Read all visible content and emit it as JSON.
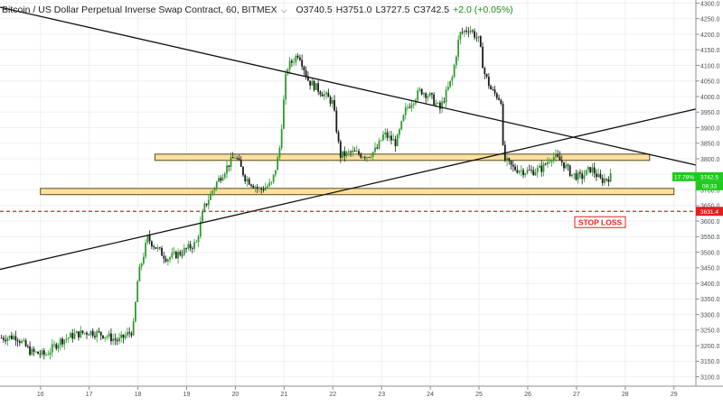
{
  "header": {
    "title": "Bitcoin / US Dollar Perpetual Inverse Swap Contract, 60, BITMEX",
    "chevron_icon": "chevron-down-icon",
    "open": "O3740.5",
    "high": "H3751.0",
    "low": "L3727.5",
    "close": "C3742.5",
    "change": "+2.0 (+0.05%)"
  },
  "chart_data": {
    "type": "candlestick",
    "y_axis": {
      "min": 3070,
      "max": 4310,
      "ticks": [
        3100,
        3150,
        3200,
        3250,
        3300,
        3350,
        3400,
        3450,
        3500,
        3550,
        3600,
        3650,
        3700,
        3750,
        3800,
        3850,
        3900,
        3950,
        4000,
        4050,
        4100,
        4150,
        4200,
        4250,
        4300
      ],
      "tick_labels": [
        "3100.0",
        "3150.0",
        "3200.0",
        "3250.0",
        "3300.0",
        "3350.0",
        "3400.0",
        "3450.0",
        "3500.0",
        "3550.0",
        "3600.0",
        "3650.0",
        "3700.0",
        "3750.0",
        "3800.0",
        "3850.0",
        "3900.0",
        "3950.0",
        "4000.0",
        "4050.0",
        "4100.0",
        "4150.0",
        "4200.0",
        "4250.0",
        "4300.0"
      ]
    },
    "x_axis": {
      "tick_labels": [
        "16",
        "17",
        "18",
        "19",
        "20",
        "21",
        "22",
        "23",
        "24",
        "25",
        "26",
        "27",
        "28",
        "29"
      ],
      "tick_days": [
        16,
        17,
        18,
        19,
        20,
        21,
        22,
        23,
        24,
        25,
        26,
        27,
        28,
        29
      ],
      "range": [
        15.17,
        29.45
      ]
    },
    "grid": true,
    "close_path": [
      [
        15.2,
        3225
      ],
      [
        15.5,
        3230
      ],
      [
        15.8,
        3180
      ],
      [
        16.1,
        3170
      ],
      [
        16.4,
        3215
      ],
      [
        16.7,
        3235
      ],
      [
        17.0,
        3245
      ],
      [
        17.3,
        3235
      ],
      [
        17.6,
        3215
      ],
      [
        17.9,
        3250
      ],
      [
        18.0,
        3420
      ],
      [
        18.2,
        3545
      ],
      [
        18.4,
        3510
      ],
      [
        18.6,
        3480
      ],
      [
        18.9,
        3500
      ],
      [
        19.2,
        3530
      ],
      [
        19.35,
        3640
      ],
      [
        19.6,
        3720
      ],
      [
        19.85,
        3780
      ],
      [
        20.0,
        3810
      ],
      [
        20.2,
        3740
      ],
      [
        20.5,
        3700
      ],
      [
        20.75,
        3720
      ],
      [
        20.9,
        3820
      ],
      [
        21.05,
        4090
      ],
      [
        21.3,
        4140
      ],
      [
        21.5,
        4050
      ],
      [
        21.8,
        4010
      ],
      [
        22.0,
        3980
      ],
      [
        22.15,
        3810
      ],
      [
        22.4,
        3820
      ],
      [
        22.7,
        3810
      ],
      [
        22.9,
        3830
      ],
      [
        23.05,
        3880
      ],
      [
        23.3,
        3850
      ],
      [
        23.5,
        3960
      ],
      [
        23.8,
        4020
      ],
      [
        24.0,
        4000
      ],
      [
        24.2,
        3960
      ],
      [
        24.45,
        4060
      ],
      [
        24.6,
        4200
      ],
      [
        24.8,
        4220
      ],
      [
        25.0,
        4180
      ],
      [
        25.1,
        4080
      ],
      [
        25.25,
        4020
      ],
      [
        25.45,
        3990
      ],
      [
        25.5,
        3800
      ],
      [
        25.7,
        3770
      ],
      [
        25.95,
        3760
      ],
      [
        26.1,
        3760
      ],
      [
        26.3,
        3770
      ],
      [
        26.5,
        3810
      ],
      [
        26.7,
        3790
      ],
      [
        26.9,
        3750
      ],
      [
        27.1,
        3740
      ],
      [
        27.3,
        3770
      ],
      [
        27.5,
        3730
      ],
      [
        27.7,
        3742.5
      ]
    ],
    "drawings": {
      "trendline_descending": {
        "from": [
          14.8,
          4300
        ],
        "to": [
          29.45,
          3780
        ]
      },
      "trendline_ascending": {
        "from": [
          15.17,
          3445
        ],
        "to": [
          29.45,
          3960
        ]
      },
      "resistance_zone": {
        "from_day": 18.35,
        "to_day": 28.5,
        "low": 3795,
        "high": 3815
      },
      "support_zone": {
        "from_day": 16.0,
        "to_day": 29.0,
        "low": 3685,
        "high": 3705
      },
      "stop_loss_line": {
        "price": 3631.4
      }
    }
  },
  "price_tags": {
    "current_price": "3742.5",
    "current_left": "17.78%",
    "countdown": "08:33",
    "stop_loss_price": "3631.4"
  },
  "annotations": {
    "stop_loss": "STOP LOSS"
  },
  "colors": {
    "up": "#2e9a2e",
    "down": "#1a1a1a",
    "zone_fill": "#ffe0a0",
    "zone_stroke": "#5a4a10",
    "stop_loss": "#e02020",
    "current_tag": "#1fcb1f"
  }
}
